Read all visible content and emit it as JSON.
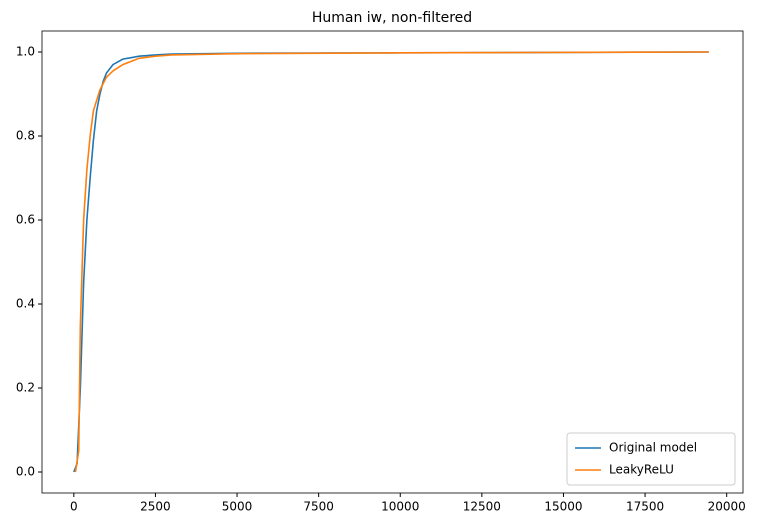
{
  "chart_data": {
    "type": "line",
    "title": "Human iw, non-filtered",
    "x_values": [
      0,
      100,
      200,
      300,
      400,
      500,
      600,
      700,
      800,
      900,
      1000,
      1200,
      1500,
      2000,
      2500,
      3000,
      5000,
      10000,
      19450
    ],
    "series": [
      {
        "name": "Original model",
        "color": "#1f77b4",
        "x": [
          0,
          100,
          200,
          300,
          400,
          500,
          600,
          700,
          800,
          900,
          1000,
          1200,
          1500,
          2000,
          2500,
          3000,
          5000,
          10000,
          19450
        ],
        "values": [
          0,
          0.02,
          0.2,
          0.45,
          0.6,
          0.7,
          0.79,
          0.86,
          0.9,
          0.93,
          0.95,
          0.97,
          0.983,
          0.99,
          0.993,
          0.995,
          0.997,
          0.998,
          1.0
        ]
      },
      {
        "name": "LeakyReLU",
        "color": "#ff7f0e",
        "x": [
          50,
          150,
          200,
          300,
          400,
          500,
          600,
          800,
          1000,
          1200,
          1500,
          2000,
          2500,
          3000,
          5000,
          10000,
          19450
        ],
        "values": [
          0,
          0.05,
          0.35,
          0.6,
          0.72,
          0.8,
          0.86,
          0.91,
          0.94,
          0.955,
          0.97,
          0.985,
          0.99,
          0.993,
          0.996,
          0.998,
          1.0
        ]
      }
    ],
    "xlim": [
      -975,
      20500
    ],
    "ylim": [
      -0.05,
      1.05
    ],
    "xticks": [
      0,
      2500,
      5000,
      7500,
      10000,
      12500,
      15000,
      17500,
      20000
    ],
    "yticks": [
      {
        "value": 0,
        "label": "0.0"
      },
      {
        "value": 0.2,
        "label": "0.2"
      },
      {
        "value": 0.4,
        "label": "0.4"
      },
      {
        "value": 0.6,
        "label": "0.6"
      },
      {
        "value": 0.8,
        "label": "0.8"
      },
      {
        "value": 1,
        "label": "1.0"
      }
    ],
    "legend": "lower right",
    "grid": false
  }
}
